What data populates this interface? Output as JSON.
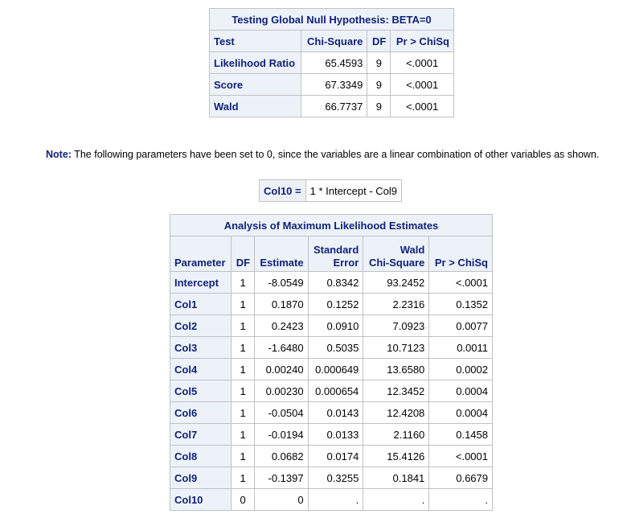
{
  "global_null": {
    "title": "Testing Global Null Hypothesis: BETA=0",
    "headers": [
      "Test",
      "Chi-Square",
      "DF",
      "Pr > ChiSq"
    ],
    "rows": [
      [
        "Likelihood Ratio",
        "65.4593",
        "9",
        "<.0001"
      ],
      [
        "Score",
        "67.3349",
        "9",
        "<.0001"
      ],
      [
        "Wald",
        "66.7737",
        "9",
        "<.0001"
      ]
    ]
  },
  "note": {
    "label": "Note:",
    "text": "The following parameters have been set to 0, since the variables are a linear combination of other variables as shown."
  },
  "linear_combo": {
    "label": "Col10 =",
    "expression": "1 * Intercept - Col9"
  },
  "mle": {
    "title": "Analysis of Maximum Likelihood Estimates",
    "headers": {
      "parameter": "Parameter",
      "df": "DF",
      "estimate": "Estimate",
      "std_error_1": "Standard",
      "std_error_2": "Error",
      "wald_1": "Wald",
      "wald_2": "Chi-Square",
      "p": "Pr > ChiSq"
    },
    "rows": [
      [
        "Intercept",
        "1",
        "-8.0549",
        "0.8342",
        "93.2452",
        "<.0001"
      ],
      [
        "Col1",
        "1",
        "0.1870",
        "0.1252",
        "2.2316",
        "0.1352"
      ],
      [
        "Col2",
        "1",
        "0.2423",
        "0.0910",
        "7.0923",
        "0.0077"
      ],
      [
        "Col3",
        "1",
        "-1.6480",
        "0.5035",
        "10.7123",
        "0.0011"
      ],
      [
        "Col4",
        "1",
        "0.00240",
        "0.000649",
        "13.6580",
        "0.0002"
      ],
      [
        "Col5",
        "1",
        "0.00230",
        "0.000654",
        "12.3452",
        "0.0004"
      ],
      [
        "Col6",
        "1",
        "-0.0504",
        "0.0143",
        "12.4208",
        "0.0004"
      ],
      [
        "Col7",
        "1",
        "-0.0194",
        "0.0133",
        "2.1160",
        "0.1458"
      ],
      [
        "Col8",
        "1",
        "0.0682",
        "0.0174",
        "15.4126",
        "<.0001"
      ],
      [
        "Col9",
        "1",
        "-0.1397",
        "0.3255",
        "0.1841",
        "0.6679"
      ],
      [
        "Col10",
        "0",
        "0",
        ".",
        ".",
        "."
      ]
    ]
  }
}
